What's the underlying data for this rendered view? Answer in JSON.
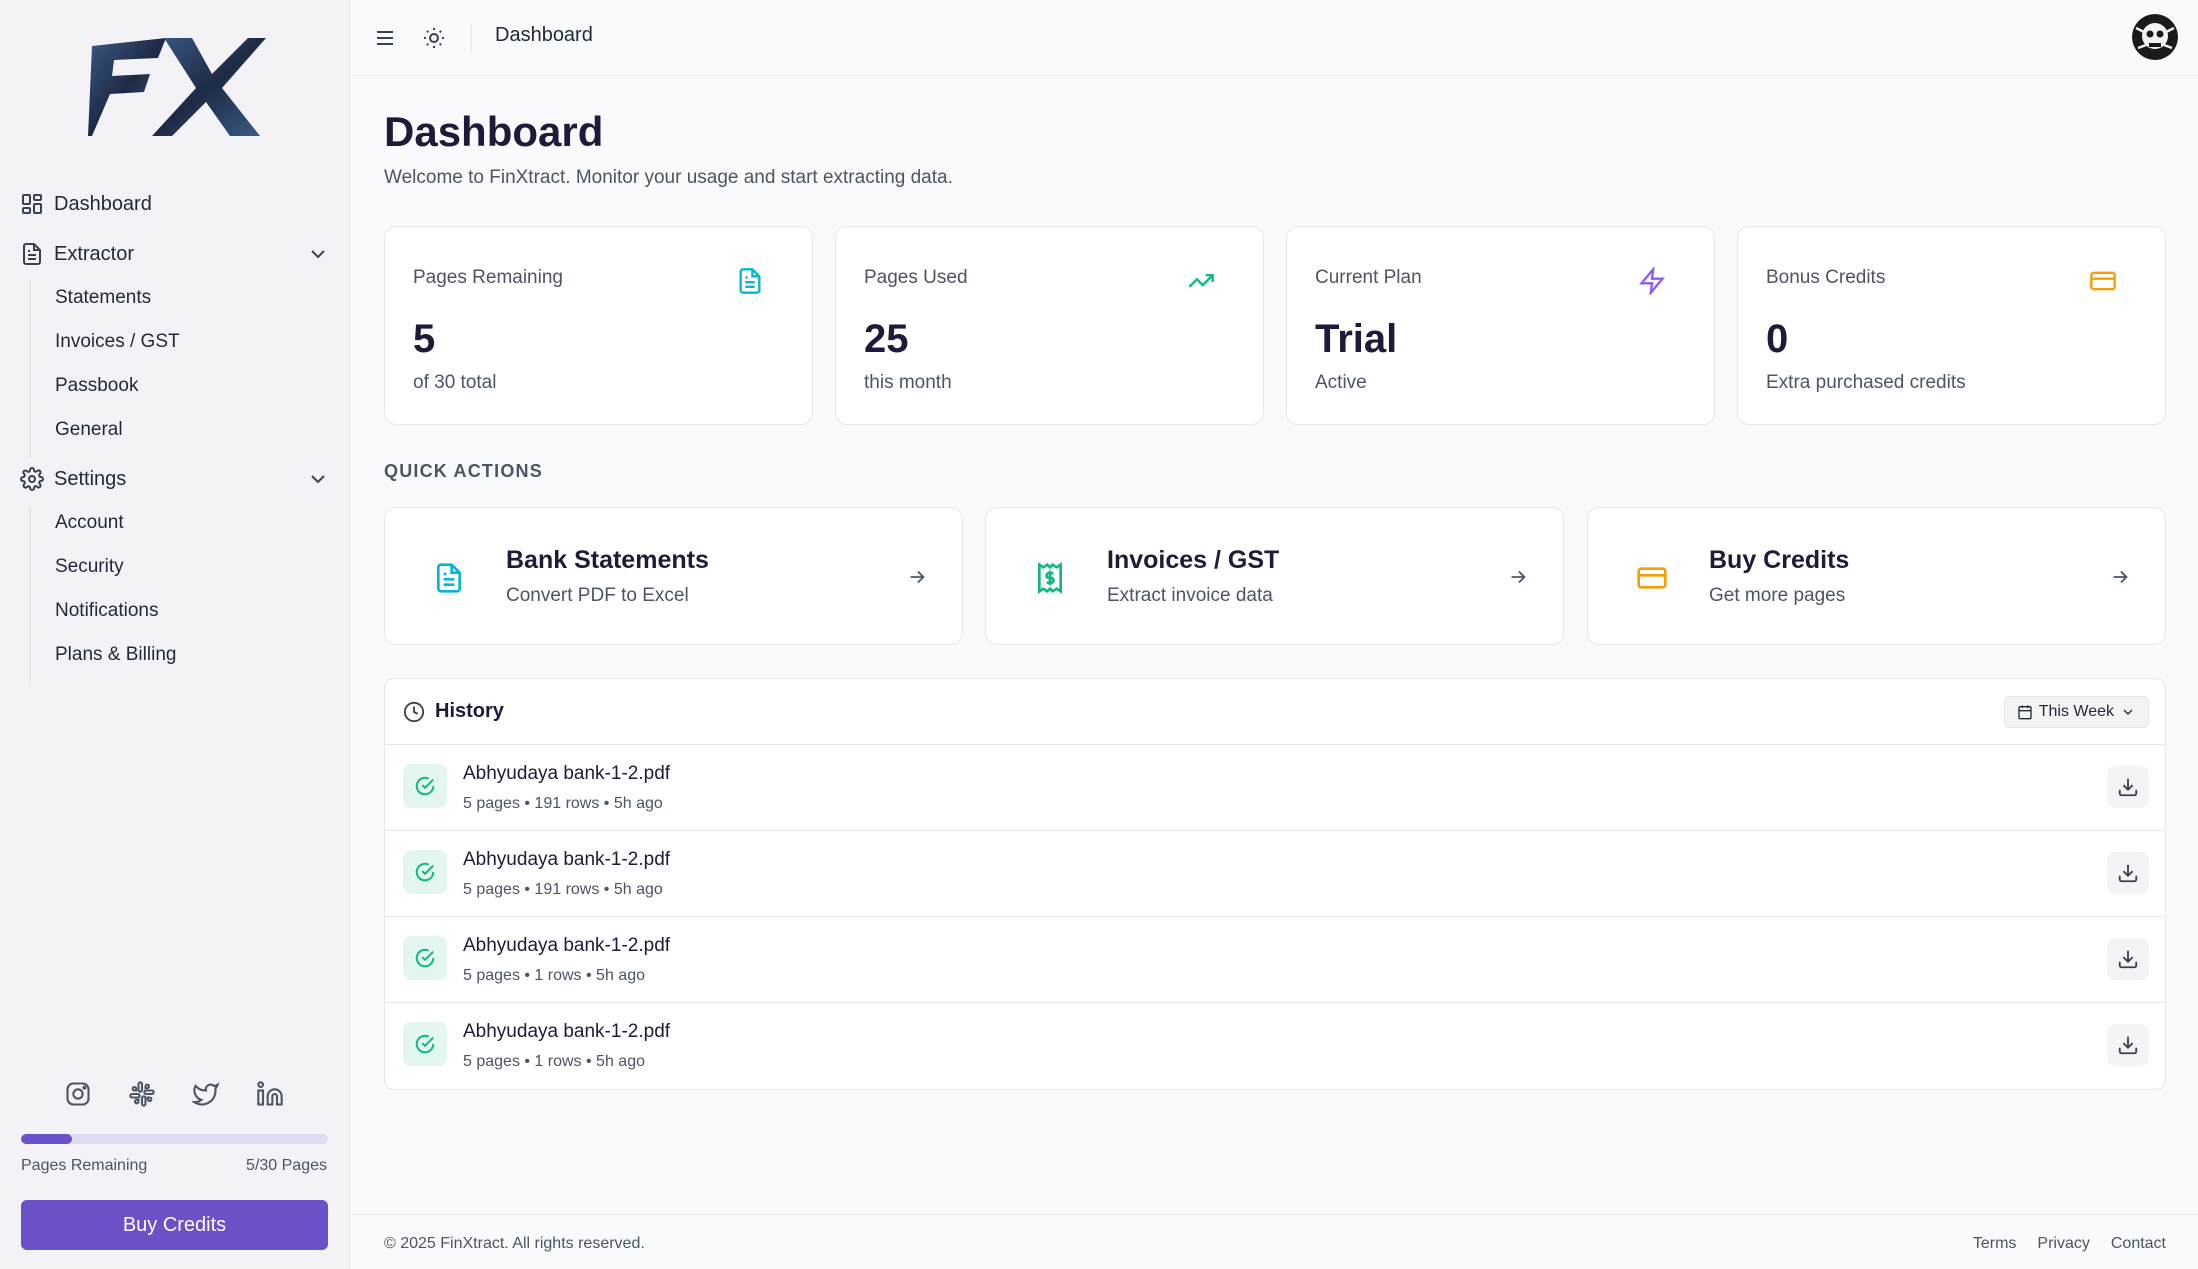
{
  "brand": {
    "logo_text": "FX"
  },
  "sidebar": {
    "dashboard": "Dashboard",
    "extractor": {
      "label": "Extractor",
      "items": [
        "Statements",
        "Invoices / GST",
        "Passbook",
        "General"
      ]
    },
    "settings": {
      "label": "Settings",
      "items": [
        "Account",
        "Security",
        "Notifications",
        "Plans & Billing"
      ]
    },
    "socials": [
      "instagram-icon",
      "slack-icon",
      "twitter-icon",
      "linkedin-icon"
    ],
    "usage": {
      "label": "Pages Remaining",
      "count": "5/30 Pages",
      "fraction": 0.167
    },
    "buy_button": "Buy Credits"
  },
  "topbar": {
    "title": "Dashboard"
  },
  "main": {
    "title": "Dashboard",
    "subtitle": "Welcome to FinXtract. Monitor your usage and start extracting data.",
    "stats": [
      {
        "label": "Pages Remaining",
        "value": "5",
        "note": "of 30 total",
        "icon": "document-icon",
        "color": "#06b6d4"
      },
      {
        "label": "Pages Used",
        "value": "25",
        "note": "this month",
        "icon": "trending-up-icon",
        "color": "#10b981"
      },
      {
        "label": "Current Plan",
        "value": "Trial",
        "note": "Active",
        "icon": "lightning-icon",
        "color": "#8b5cf6"
      },
      {
        "label": "Bonus Credits",
        "value": "0",
        "note": "Extra purchased credits",
        "icon": "credit-card-icon",
        "color": "#f59e0b"
      }
    ],
    "quick_actions_title": "QUICK ACTIONS",
    "quick_actions": [
      {
        "title": "Bank Statements",
        "subtitle": "Convert PDF to Excel",
        "icon": "document-icon",
        "color": "#06b6d4"
      },
      {
        "title": "Invoices / GST",
        "subtitle": "Extract invoice data",
        "icon": "receipt-icon",
        "color": "#10b981"
      },
      {
        "title": "Buy Credits",
        "subtitle": "Get more pages",
        "icon": "credit-card-icon",
        "color": "#f59e0b"
      }
    ],
    "history": {
      "title": "History",
      "filter": "This Week",
      "rows": [
        {
          "name": "Abhyudaya bank-1-2.pdf",
          "meta": "5 pages  •  191 rows  •  5h ago"
        },
        {
          "name": "Abhyudaya bank-1-2.pdf",
          "meta": "5 pages  •  191 rows  •  5h ago"
        },
        {
          "name": "Abhyudaya bank-1-2.pdf",
          "meta": "5 pages  •  1 rows  •  5h ago"
        },
        {
          "name": "Abhyudaya bank-1-2.pdf",
          "meta": "5 pages  •  1 rows  •  5h ago"
        }
      ]
    }
  },
  "footer": {
    "copyright": "© 2025 FinXtract. All rights reserved.",
    "links": [
      "Terms",
      "Privacy",
      "Contact"
    ]
  }
}
